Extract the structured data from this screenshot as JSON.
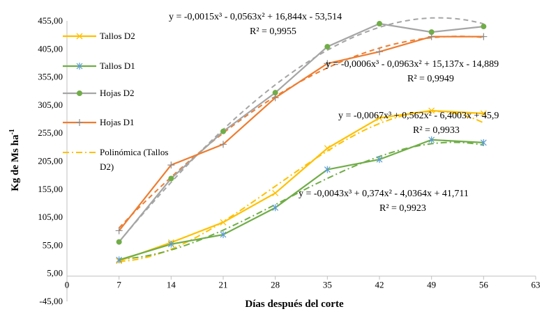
{
  "chart_data": {
    "type": "line",
    "xlabel": "Días después del corte",
    "ylabel": "Kg de Ms ha-1",
    "ylabel_main": "Kg de Ms ha",
    "ylabel_sup": "-1",
    "xlim": [
      0,
      63
    ],
    "ylim": [
      -45,
      455
    ],
    "x_ticks": [
      "0",
      "7",
      "14",
      "21",
      "28",
      "35",
      "42",
      "49",
      "56",
      "63"
    ],
    "y_ticks": [
      "-45,00",
      "5,00",
      "55,00",
      "105,00",
      "155,00",
      "205,00",
      "255,00",
      "305,00",
      "355,00",
      "405,00",
      "455,00"
    ],
    "grid": false,
    "legend_position": "left",
    "x": [
      7,
      14,
      21,
      28,
      35,
      42,
      49,
      56
    ],
    "series": [
      {
        "name": "Tallos D2",
        "color": "#FFC000",
        "marker": "x",
        "values": [
          27,
          60,
          96,
          148,
          228,
          282,
          295,
          290
        ]
      },
      {
        "name": "Tallos D1",
        "color": "#70AD47",
        "marker": "asterisk",
        "values": [
          29,
          57,
          74,
          122,
          190,
          208,
          243,
          238
        ]
      },
      {
        "name": "Hojas D2",
        "color": "#A5A5A5",
        "marker": "circle",
        "values": [
          61,
          174,
          258,
          327,
          409,
          450,
          435,
          445
        ]
      },
      {
        "name": "Hojas D1",
        "color": "#ED7D31",
        "marker": "plus",
        "values": [
          81,
          198,
          235,
          318,
          379,
          400,
          427,
          427
        ]
      }
    ],
    "trendlines": [
      {
        "fit": [
          0,
          -0.0067,
          0.562,
          -6.4003,
          45.9
        ],
        "color": "#FFC000",
        "dash": "9 4 2 4"
      },
      {
        "fit": [
          0,
          -0.0043,
          0.374,
          -4.0364,
          41.711
        ],
        "color": "#70AD47",
        "dash": "9 4 2 4"
      },
      {
        "fit": [
          0,
          -0.0015,
          -0.0563,
          16.844,
          -53.514
        ],
        "color": "#A5A5A5",
        "dash": "7 5"
      },
      {
        "fit": [
          0,
          -0.0006,
          -0.0963,
          15.137,
          -14.889
        ],
        "color": "#ED7D31",
        "dash": "7 5"
      }
    ],
    "trend_legend": {
      "name_line1": "Polinómica (Tallos",
      "name_line2": "D2)",
      "color": "#FFC000"
    },
    "annotations": [
      {
        "equation": "y = -0,0015x³ - 0,0563x² + 16,844x - 53,514",
        "r2": "R² = 0,9955"
      },
      {
        "equation": "y = -0,0006x³ - 0,0963x² + 15,137x - 14,889",
        "r2": "R² = 0,9949"
      },
      {
        "equation": "y = -0,0067x³ + 0,562x² - 6,4003x + 45,9",
        "r2": "R² = 0,9933"
      },
      {
        "equation": "y = -0,0043x³ + 0,374x² - 4,0364x + 41,711",
        "r2": "R² = 0,9923"
      }
    ]
  }
}
